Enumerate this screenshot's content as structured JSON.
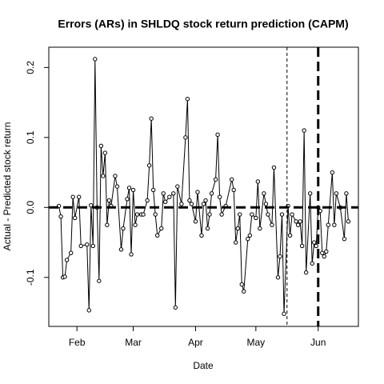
{
  "chart_data": {
    "type": "line",
    "title": "Errors (ARs) in SHLDQ stock return prediction (CAPM)",
    "x_label": "Date",
    "y_label": "Actual - Predicted stock return",
    "x": [
      23,
      24,
      25,
      26,
      27,
      29,
      30,
      31,
      33,
      34,
      37,
      38,
      39,
      40,
      41,
      42,
      43,
      44,
      45,
      46,
      47,
      48,
      49,
      51,
      52,
      54,
      55,
      57,
      58,
      59,
      60,
      61,
      62,
      64,
      65,
      67,
      68,
      69,
      70,
      71,
      72,
      74,
      75,
      76,
      78,
      80,
      81,
      82,
      84,
      86,
      87,
      88,
      89,
      91,
      92,
      94,
      95,
      96,
      97,
      98,
      99,
      101,
      102,
      103,
      104,
      106,
      109,
      110,
      111,
      112,
      113,
      114,
      115,
      117,
      118,
      119,
      121,
      122,
      123,
      125,
      126,
      127,
      129,
      130,
      132,
      133,
      134,
      135,
      137,
      138,
      139,
      141,
      142,
      143,
      144,
      145,
      146,
      148,
      149,
      150,
      151,
      152,
      153,
      154,
      155,
      156,
      157,
      159,
      160,
      161,
      163,
      165,
      166,
      167
    ],
    "values": [
      0.002,
      -0.013,
      -0.1,
      -0.099,
      -0.075,
      -0.065,
      0.015,
      -0.015,
      0.015,
      -0.055,
      -0.053,
      -0.147,
      0.003,
      -0.055,
      0.212,
      0.0,
      -0.105,
      0.088,
      0.045,
      0.078,
      -0.025,
      0.01,
      0.002,
      0.045,
      0.03,
      -0.06,
      -0.03,
      0.012,
      0.028,
      -0.067,
      0.025,
      -0.025,
      -0.01,
      -0.01,
      -0.01,
      0.01,
      0.06,
      0.127,
      0.025,
      -0.01,
      -0.04,
      -0.03,
      0.02,
      0.008,
      0.015,
      0.02,
      -0.143,
      0.03,
      0.005,
      0.1,
      0.155,
      0.01,
      0.005,
      -0.02,
      0.022,
      -0.04,
      0.005,
      0.01,
      -0.03,
      -0.01,
      0.02,
      0.04,
      0.104,
      0.015,
      -0.01,
      0.002,
      0.04,
      0.025,
      -0.05,
      -0.03,
      -0.01,
      -0.11,
      -0.12,
      -0.045,
      -0.04,
      -0.01,
      -0.015,
      0.037,
      -0.03,
      0.02,
      0.005,
      -0.01,
      -0.025,
      0.057,
      -0.1,
      -0.07,
      -0.01,
      -0.152,
      0.002,
      -0.04,
      -0.01,
      -0.02,
      -0.025,
      -0.02,
      -0.055,
      0.11,
      -0.093,
      0.02,
      -0.08,
      -0.05,
      -0.055,
      0.0,
      -0.005,
      -0.065,
      -0.07,
      -0.063,
      -0.025,
      0.05,
      -0.025,
      0.02,
      0.0,
      -0.045,
      0.02,
      -0.02
    ],
    "color": "#000000",
    "xlim": [
      18,
      172
    ],
    "xticks": [
      {
        "value": 32,
        "label": "Feb"
      },
      {
        "value": 60,
        "label": "Mar"
      },
      {
        "value": 91,
        "label": "Apr"
      },
      {
        "value": 121,
        "label": "May"
      },
      {
        "value": 152,
        "label": "Jun"
      }
    ],
    "ylim": [
      -0.17,
      0.229
    ],
    "yticks": [
      -0.1,
      {
        "value": 0,
        "label": "0.0"
      },
      0.1,
      0.2
    ],
    "hline": 0,
    "vlines": [
      136.5,
      152
    ],
    "vline_widths": [
      1,
      3
    ]
  }
}
